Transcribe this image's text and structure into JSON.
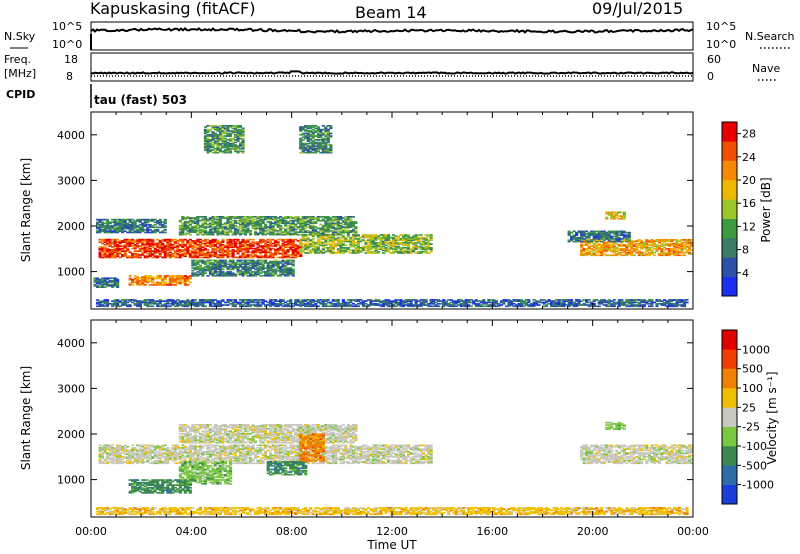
{
  "header": {
    "station": "Kapuskasing (fitACF)",
    "beam": "Beam 14",
    "date": "09/Jul/2015"
  },
  "strip": {
    "nsky_label": "N.Sky",
    "nsky_ticks": [
      "10^5",
      "10^0"
    ],
    "nsearch_label": "N.Search",
    "nsearch_ticks": [
      "10^5",
      "10^0"
    ],
    "freq_label": "Freq.",
    "freq_unit": "[MHz]",
    "freq_ticks": [
      "18",
      "8"
    ],
    "nave_label": "Nave",
    "nave_ticks": [
      "60",
      "0"
    ],
    "cpid_label": "CPID",
    "cpid_value": "tau (fast) 503"
  },
  "chart_data": [
    {
      "type": "heatmap",
      "panel": "power",
      "xlabel": "",
      "ylabel": "Slant Range [km]",
      "xlim": [
        0,
        24
      ],
      "ylim": [
        180,
        4500
      ],
      "yticks": [
        1000,
        2000,
        3000,
        4000
      ],
      "colorbar": {
        "label": "Power [dB]",
        "ticks": [
          "4",
          "8",
          "12",
          "16",
          "20",
          "24",
          "28"
        ],
        "range": [
          0,
          30
        ],
        "colors": [
          "#1c2ef0",
          "#2b52a8",
          "#3a7c68",
          "#3c9a40",
          "#9bc52a",
          "#f0b700",
          "#f58a00",
          "#f05000",
          "#e80000"
        ]
      },
      "bands": [
        {
          "t0": 0.3,
          "t1": 8.3,
          "r0": 1300,
          "r1": 1700,
          "level": 26
        },
        {
          "t0": 8.3,
          "t1": 13.5,
          "r0": 1400,
          "r1": 1800,
          "level": 14
        },
        {
          "t0": 3.5,
          "t1": 10.5,
          "r0": 1800,
          "r1": 2200,
          "level": 11
        },
        {
          "t0": 0.2,
          "t1": 3.0,
          "r0": 1850,
          "r1": 2150,
          "level": 8
        },
        {
          "t0": 1.5,
          "t1": 4.0,
          "r0": 700,
          "r1": 900,
          "level": 22
        },
        {
          "t0": 0.1,
          "t1": 1.0,
          "r0": 650,
          "r1": 850,
          "level": 7
        },
        {
          "t0": 4.0,
          "t1": 8.0,
          "r0": 900,
          "r1": 1250,
          "level": 9
        },
        {
          "t0": 19.5,
          "t1": 24.0,
          "r0": 1350,
          "r1": 1700,
          "level": 20
        },
        {
          "t0": 19.0,
          "t1": 21.5,
          "r0": 1650,
          "r1": 1900,
          "level": 8
        },
        {
          "t0": 20.5,
          "t1": 21.3,
          "r0": 2150,
          "r1": 2300,
          "level": 18
        },
        {
          "t0": 0.2,
          "t1": 23.8,
          "r0": 230,
          "r1": 380,
          "level": 6
        },
        {
          "t0": 4.5,
          "t1": 6.0,
          "r0": 3600,
          "r1": 4200,
          "level": 11
        },
        {
          "t0": 8.3,
          "t1": 9.5,
          "r0": 3600,
          "r1": 4200,
          "level": 9
        }
      ]
    },
    {
      "type": "heatmap",
      "panel": "velocity",
      "xlabel": "Time UT",
      "ylabel": "Slant Range [km]",
      "xlim": [
        0,
        24
      ],
      "ylim": [
        180,
        4500
      ],
      "yticks": [
        1000,
        2000,
        3000,
        4000
      ],
      "xticks": [
        "00:00",
        "04:00",
        "08:00",
        "12:00",
        "16:00",
        "20:00",
        "00:00"
      ],
      "colorbar": {
        "label": "Velocity [m s⁻¹]",
        "ticks": [
          "1000",
          "500",
          "100",
          "25",
          "-25",
          "-100",
          "-500",
          "-1000"
        ],
        "colors": [
          "#1c3ed8",
          "#2e6ea8",
          "#3a8a50",
          "#78c840",
          "#c8c8c0",
          "#f0c000",
          "#f08000",
          "#f04000",
          "#e00000"
        ]
      },
      "bands": [
        {
          "t0": 0.3,
          "t1": 13.5,
          "r0": 1350,
          "r1": 1750,
          "level": 4
        },
        {
          "t0": 3.5,
          "t1": 10.5,
          "r0": 1800,
          "r1": 2200,
          "level": 4
        },
        {
          "t0": 19.5,
          "t1": 24.0,
          "r0": 1350,
          "r1": 1750,
          "level": 4
        },
        {
          "t0": 3.5,
          "t1": 5.5,
          "r0": 900,
          "r1": 1400,
          "level": 3
        },
        {
          "t0": 1.5,
          "t1": 4.0,
          "r0": 700,
          "r1": 1000,
          "level": 2
        },
        {
          "t0": 7.0,
          "t1": 8.5,
          "r0": 1100,
          "r1": 1400,
          "level": 2
        },
        {
          "t0": 8.3,
          "t1": 9.2,
          "r0": 1400,
          "r1": 2000,
          "level": 6
        },
        {
          "t0": 20.5,
          "t1": 21.3,
          "r0": 2100,
          "r1": 2250,
          "level": 3
        },
        {
          "t0": 0.2,
          "t1": 23.8,
          "r0": 230,
          "r1": 380,
          "level": 5
        }
      ]
    }
  ]
}
